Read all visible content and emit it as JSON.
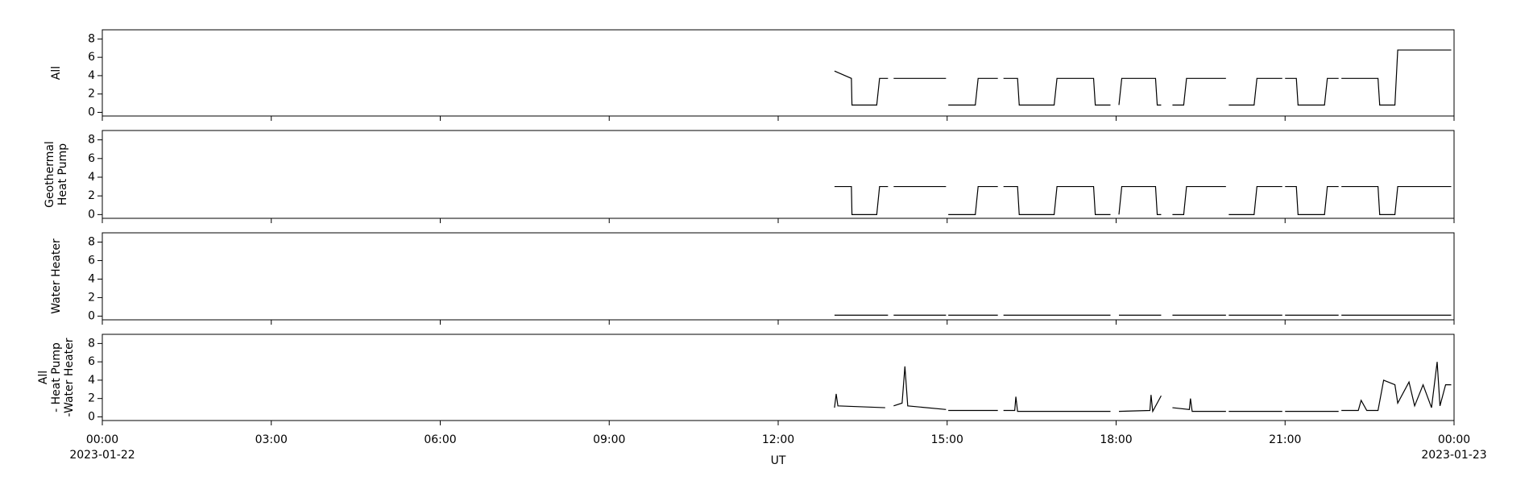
{
  "chart_data": [
    {
      "type": "line",
      "ylabel": [
        "All"
      ],
      "color": "#000000",
      "x": [
        13.0,
        13.3,
        13.31,
        13.75,
        13.8,
        13.95,
        13.97,
        14.05,
        14.98,
        15.0,
        15.02,
        15.5,
        15.55,
        15.9,
        15.92,
        16.0,
        16.25,
        16.28,
        16.9,
        16.95,
        17.6,
        17.63,
        17.9,
        17.92,
        18.05,
        18.1,
        18.7,
        18.73,
        18.8,
        18.85,
        19.0,
        19.2,
        19.25,
        19.95,
        19.97,
        20.0,
        20.45,
        20.5,
        20.95,
        20.97,
        21.0,
        21.2,
        21.23,
        21.7,
        21.75,
        21.95,
        21.97,
        22.0,
        22.65,
        22.68,
        22.95,
        23.0,
        23.95
      ],
      "values": [
        4.5,
        3.7,
        0.8,
        0.8,
        3.7,
        3.7,
        null,
        3.7,
        3.7,
        null,
        0.8,
        0.8,
        3.7,
        3.7,
        null,
        3.7,
        3.7,
        0.8,
        0.8,
        3.7,
        3.7,
        0.8,
        0.8,
        null,
        0.8,
        3.7,
        3.7,
        0.8,
        0.8,
        null,
        0.8,
        0.8,
        3.7,
        3.7,
        null,
        0.8,
        0.8,
        3.7,
        3.7,
        null,
        3.7,
        3.7,
        0.8,
        0.8,
        3.7,
        3.7,
        null,
        3.7,
        3.7,
        0.8,
        0.8,
        6.8,
        6.8
      ],
      "ylim": [
        -0.4,
        9
      ],
      "yticks": [
        0,
        2,
        4,
        6,
        8
      ]
    },
    {
      "type": "line",
      "ylabel": [
        "Geothermal",
        "Heat Pump"
      ],
      "color": "#000000",
      "x": [
        13.0,
        13.3,
        13.31,
        13.75,
        13.8,
        13.95,
        13.97,
        14.05,
        14.98,
        15.0,
        15.02,
        15.5,
        15.55,
        15.9,
        15.92,
        16.0,
        16.25,
        16.28,
        16.9,
        16.95,
        17.6,
        17.63,
        17.9,
        17.92,
        18.05,
        18.1,
        18.7,
        18.73,
        18.8,
        18.85,
        19.0,
        19.2,
        19.25,
        19.95,
        19.97,
        20.0,
        20.45,
        20.5,
        20.95,
        20.97,
        21.0,
        21.2,
        21.23,
        21.7,
        21.75,
        21.95,
        21.97,
        22.0,
        22.65,
        22.68,
        22.95,
        23.0,
        23.95
      ],
      "values": [
        3,
        3,
        0,
        0,
        3,
        3,
        null,
        3,
        3,
        null,
        0,
        0,
        3,
        3,
        null,
        3,
        3,
        0,
        0,
        3,
        3,
        0,
        0,
        null,
        0,
        3,
        3,
        0,
        0,
        null,
        0,
        0,
        3,
        3,
        null,
        0,
        0,
        3,
        3,
        null,
        3,
        3,
        0,
        0,
        3,
        3,
        null,
        3,
        3,
        0,
        0,
        3,
        3
      ],
      "ylim": [
        -0.4,
        9
      ],
      "yticks": [
        0,
        2,
        4,
        6,
        8
      ]
    },
    {
      "type": "line",
      "ylabel": [
        "Water Heater"
      ],
      "color": "#000000",
      "x": [
        13.0,
        13.3,
        13.31,
        13.75,
        13.8,
        13.95,
        13.97,
        14.05,
        14.98,
        15.0,
        15.02,
        15.5,
        15.55,
        15.9,
        15.92,
        16.0,
        16.25,
        16.28,
        16.9,
        16.95,
        17.6,
        17.63,
        17.9,
        17.92,
        18.05,
        18.1,
        18.7,
        18.73,
        18.8,
        18.85,
        19.0,
        19.2,
        19.25,
        19.95,
        19.97,
        20.0,
        20.45,
        20.5,
        20.95,
        20.97,
        21.0,
        21.2,
        21.23,
        21.7,
        21.75,
        21.95,
        21.97,
        22.0,
        22.65,
        22.68,
        22.95,
        23.0,
        23.95
      ],
      "values": [
        0.1,
        0.1,
        0.1,
        0.1,
        0.1,
        0.1,
        null,
        0.1,
        0.1,
        null,
        0.1,
        0.1,
        0.1,
        0.1,
        null,
        0.1,
        0.1,
        0.1,
        0.1,
        0.1,
        0.1,
        0.1,
        0.1,
        null,
        0.1,
        0.1,
        0.1,
        0.1,
        0.1,
        null,
        0.1,
        0.1,
        0.1,
        0.1,
        null,
        0.1,
        0.1,
        0.1,
        0.1,
        null,
        0.1,
        0.1,
        0.1,
        0.1,
        0.1,
        0.1,
        null,
        0.1,
        0.1,
        0.1,
        0.1,
        0.1,
        0.1
      ],
      "ylim": [
        -0.4,
        9
      ],
      "yticks": [
        0,
        2,
        4,
        6,
        8
      ]
    },
    {
      "type": "line",
      "ylabel": [
        "All",
        "- Heat Pump",
        "-Water Heater"
      ],
      "color": "#000000",
      "x": [
        13.0,
        13.03,
        13.06,
        13.9,
        13.97,
        14.05,
        14.2,
        14.25,
        14.3,
        14.98,
        15.0,
        15.02,
        15.9,
        15.92,
        16.0,
        16.2,
        16.22,
        16.25,
        17.9,
        17.92,
        18.05,
        18.6,
        18.62,
        18.65,
        18.8,
        18.85,
        19.0,
        19.3,
        19.32,
        19.35,
        19.95,
        19.97,
        20.0,
        20.95,
        20.97,
        21.0,
        21.95,
        21.97,
        22.0,
        22.3,
        22.35,
        22.45,
        22.65,
        22.75,
        22.95,
        23.0,
        23.2,
        23.3,
        23.45,
        23.6,
        23.7,
        23.75,
        23.85,
        23.95
      ],
      "values": [
        1.0,
        2.5,
        1.2,
        1.0,
        null,
        1.2,
        1.5,
        5.5,
        1.2,
        0.8,
        null,
        0.7,
        0.7,
        null,
        0.7,
        0.7,
        2.2,
        0.6,
        0.6,
        null,
        0.6,
        0.7,
        2.4,
        0.6,
        2.3,
        null,
        1.0,
        0.8,
        2.0,
        0.6,
        0.6,
        null,
        0.6,
        0.6,
        null,
        0.6,
        0.6,
        null,
        0.7,
        0.7,
        1.8,
        0.7,
        0.7,
        4.0,
        3.5,
        1.5,
        3.8,
        1.2,
        3.5,
        1.0,
        6.0,
        1.2,
        3.5,
        3.5
      ],
      "ylim": [
        -0.4,
        9
      ],
      "yticks": [
        0,
        2,
        4,
        6,
        8
      ],
      "xlim": [
        0,
        24
      ],
      "xticks": [
        {
          "value": 0,
          "label": "00:00"
        },
        {
          "value": 3,
          "label": "03:00"
        },
        {
          "value": 6,
          "label": "06:00"
        },
        {
          "value": 9,
          "label": "09:00"
        },
        {
          "value": 12,
          "label": "12:00"
        },
        {
          "value": 15,
          "label": "15:00"
        },
        {
          "value": 18,
          "label": "18:00"
        },
        {
          "value": 21,
          "label": "21:00"
        },
        {
          "value": 24,
          "label": "00:00"
        }
      ],
      "date_labels": [
        "2023-01-22",
        "2023-01-23"
      ],
      "xlabel": "UT"
    }
  ]
}
